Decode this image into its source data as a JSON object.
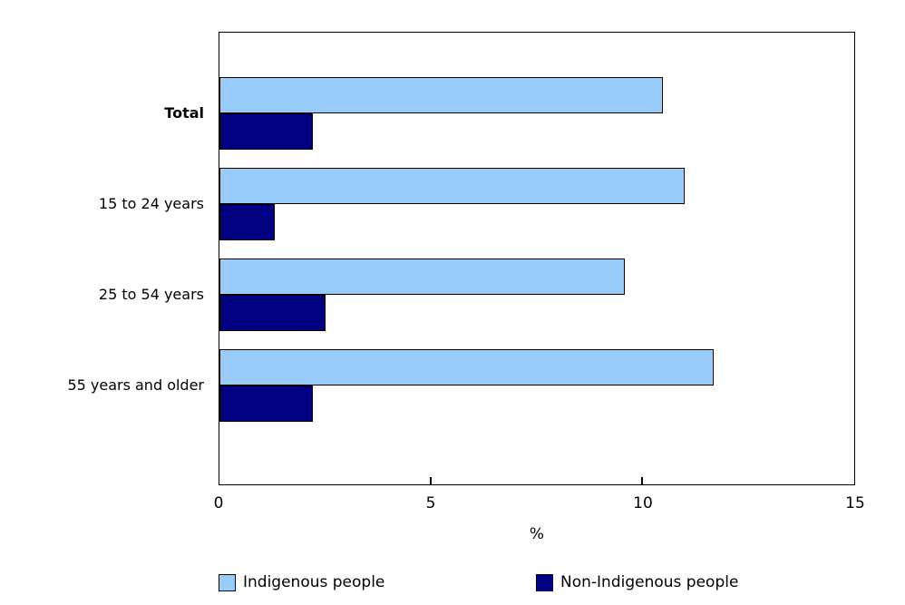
{
  "chart_data": {
    "type": "bar",
    "orientation": "horizontal",
    "title": "",
    "categories": [
      "Total",
      "15 to 24 years",
      "25 to 54 years",
      "55 years and older"
    ],
    "bold_category_index": 0,
    "series": [
      {
        "name": "Indigenous people",
        "color": "#99CCF8",
        "values": [
          10.5,
          11.0,
          9.6,
          11.7
        ]
      },
      {
        "name": "Non-Indigenous people",
        "color": "#000080",
        "values": [
          2.2,
          1.3,
          2.5,
          2.2
        ]
      }
    ],
    "xlabel": "%",
    "xlim": [
      0,
      15
    ],
    "xticks": [
      0,
      5,
      10,
      15
    ],
    "grid": false,
    "legend_position": "bottom",
    "axis_color": "#000000",
    "background_color": "#ffffff"
  }
}
